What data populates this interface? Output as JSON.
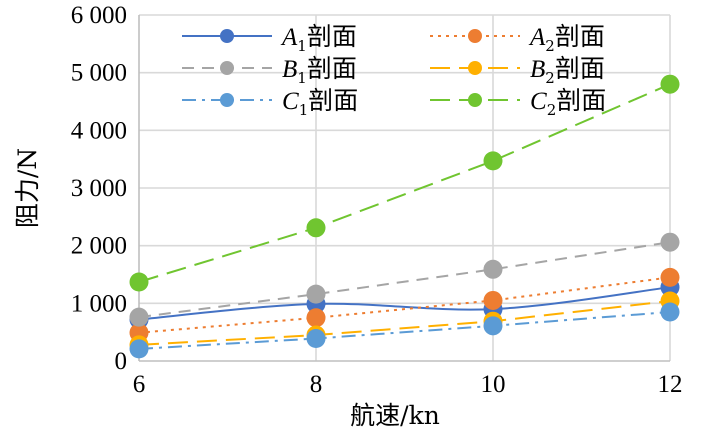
{
  "chart_data": {
    "type": "line",
    "title": "",
    "xlabel": "航速/kn",
    "ylabel": "阻力/N",
    "x": [
      6,
      8,
      10,
      12
    ],
    "x_tick_labels": [
      "6",
      "8",
      "10",
      "12"
    ],
    "xlim": [
      6,
      12
    ],
    "ylim": [
      0,
      6000
    ],
    "y_ticks": [
      0,
      1000,
      2000,
      3000,
      4000,
      5000,
      6000
    ],
    "y_tick_labels": [
      "0",
      "1 000",
      "2 000",
      "3 000",
      "4 000",
      "5 000",
      "6 000"
    ],
    "grid": true,
    "legend_position": "top",
    "series": [
      {
        "name": "A1剖面",
        "letter": "A",
        "sub": "1",
        "suffix": "剖面",
        "color": "#4472C4",
        "dash": "solid",
        "smooth": true,
        "values": [
          720,
          990,
          900,
          1280
        ]
      },
      {
        "name": "A2剖面",
        "letter": "A",
        "sub": "2",
        "suffix": "剖面",
        "color": "#ED7D31",
        "dash": "dot",
        "smooth": false,
        "values": [
          490,
          750,
          1050,
          1450
        ]
      },
      {
        "name": "B1剖面",
        "letter": "B",
        "sub": "1",
        "suffix": "剖面",
        "color": "#A5A5A5",
        "dash": "dash",
        "smooth": false,
        "values": [
          760,
          1160,
          1590,
          2060
        ]
      },
      {
        "name": "B2剖面",
        "letter": "B",
        "sub": "2",
        "suffix": "剖面",
        "color": "#FFB000",
        "dash": "longdash",
        "smooth": false,
        "values": [
          280,
          450,
          690,
          1040
        ]
      },
      {
        "name": "C1剖面",
        "letter": "C",
        "sub": "1",
        "suffix": "剖面",
        "color": "#5B9BD5",
        "dash": "dashdot",
        "smooth": false,
        "values": [
          210,
          390,
          610,
          850
        ]
      },
      {
        "name": "C2剖面",
        "letter": "C",
        "sub": "2",
        "suffix": "剖面",
        "color": "#70C530",
        "dash": "longdash",
        "smooth": false,
        "values": [
          1370,
          2310,
          3470,
          4800
        ]
      }
    ]
  }
}
